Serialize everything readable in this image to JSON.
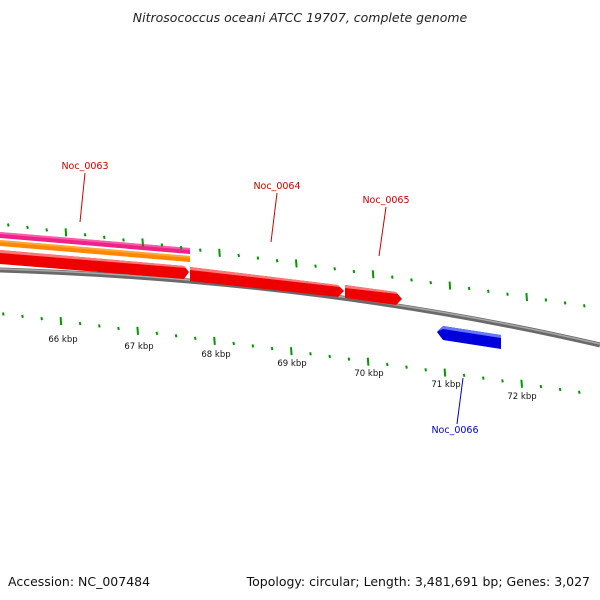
{
  "title": "Nitrosococcus oceani ATCC 19707, complete genome",
  "footer": {
    "accession": "Accession: NC_007484",
    "summary": "Topology: circular; Length: 3,481,691 bp; Genes: 3,027"
  },
  "scale_labels": [
    "66 kbp",
    "67 kbp",
    "68 kbp",
    "69 kbp",
    "70 kbp",
    "71 kbp",
    "72 kbp"
  ],
  "genes": [
    {
      "id": "Noc_0063",
      "strand": "forward",
      "color": "#ff0000"
    },
    {
      "id": "Noc_0064",
      "strand": "forward",
      "color": "#ff0000"
    },
    {
      "id": "Noc_0065",
      "strand": "forward",
      "color": "#ff0000"
    },
    {
      "id": "Noc_0066",
      "strand": "reverse",
      "color": "#0000ff"
    }
  ],
  "colors": {
    "forward_label": "#cc0000",
    "reverse_label": "#0000cc",
    "backbone": "#808080",
    "tick": "#009900",
    "feature_magenta": "#ee2288",
    "feature_orange": "#ff8800"
  }
}
